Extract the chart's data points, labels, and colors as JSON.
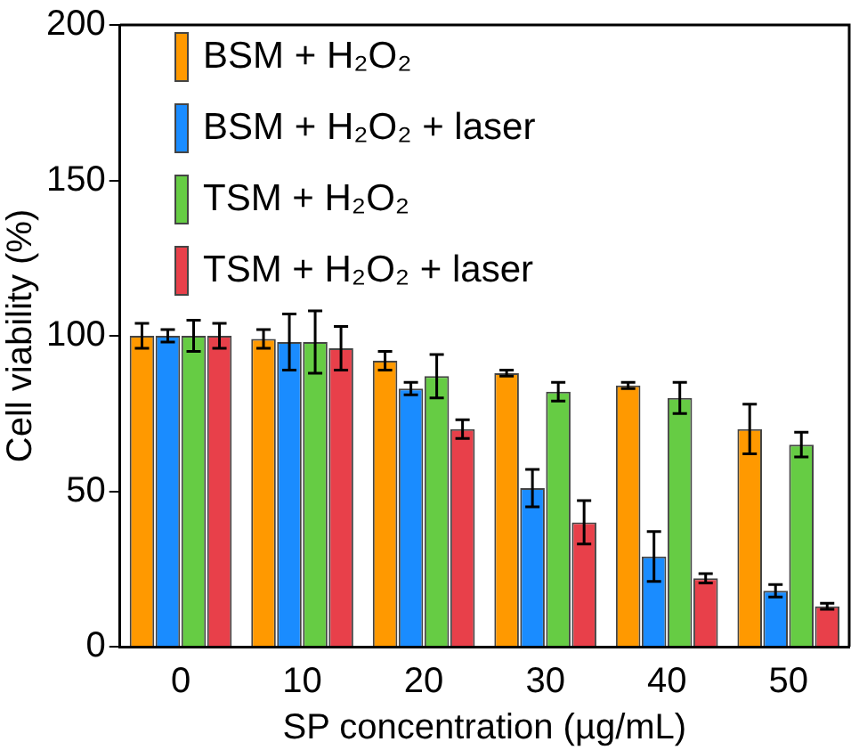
{
  "chart_data": {
    "type": "bar",
    "xlabel": "SP concentration (µg/mL)",
    "ylabel": "Cell viability (%)",
    "categories": [
      "0",
      "10",
      "20",
      "30",
      "40",
      "50"
    ],
    "ylim": [
      0,
      200
    ],
    "yticks": [
      0,
      50,
      100,
      150,
      200
    ],
    "grid": false,
    "legend": "top left",
    "series": [
      {
        "name": "BSM + H₂O₂",
        "color": "#ff9900",
        "values": [
          100,
          99,
          92,
          88,
          84,
          70
        ],
        "errors": [
          4,
          3,
          3,
          1,
          1,
          8
        ]
      },
      {
        "name": "BSM + H₂O₂ + laser",
        "color": "#1a8cff",
        "values": [
          100,
          98,
          83,
          51,
          29,
          18
        ],
        "errors": [
          2,
          9,
          2,
          6,
          8,
          2
        ]
      },
      {
        "name": "TSM + H₂O₂",
        "color": "#66cc44",
        "values": [
          100,
          98,
          87,
          82,
          80,
          65
        ],
        "errors": [
          5,
          10,
          7,
          3,
          5,
          4
        ]
      },
      {
        "name": "TSM + H₂O₂ + laser",
        "color": "#e8404a",
        "values": [
          100,
          96,
          70,
          40,
          22,
          13
        ],
        "errors": [
          4,
          7,
          3,
          7,
          1.5,
          1
        ]
      }
    ]
  }
}
